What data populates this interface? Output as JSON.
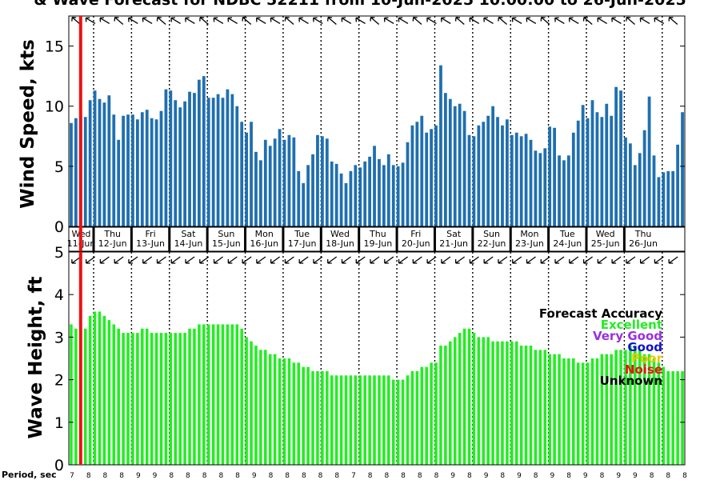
{
  "chart_data": {
    "title": "& Wave Forecast for NDBC 52211 from 10-Jun-2025 10:00:00 to 26-Jun-2025",
    "current_time_index": 2.5,
    "wind": {
      "type": "bar",
      "ylabel": "Wind Speed, kts",
      "ylim": [
        0,
        17.5
      ],
      "yticks": [
        0,
        5,
        10,
        15
      ],
      "bar_color": "#1f6fb0",
      "values": [
        8.6,
        9.0,
        9.2,
        9.1,
        10.5,
        11.3,
        10.6,
        10.3,
        10.9,
        9.3,
        7.2,
        9.2,
        9.3,
        9.3,
        8.9,
        9.5,
        9.7,
        9.0,
        8.9,
        9.6,
        11.4,
        11.3,
        10.5,
        9.9,
        10.4,
        11.2,
        11.1,
        12.2,
        12.5,
        10.7,
        10.7,
        11.0,
        10.7,
        11.4,
        11.0,
        10.0,
        8.7,
        7.8,
        8.7,
        6.2,
        5.5,
        7.2,
        6.7,
        7.3,
        8.1,
        7.2,
        7.6,
        7.4,
        4.6,
        3.6,
        5.1,
        6.0,
        7.6,
        7.5,
        7.3,
        5.4,
        5.2,
        4.4,
        3.6,
        4.6,
        5.1,
        4.9,
        5.4,
        5.8,
        6.7,
        5.6,
        5.1,
        6.0,
        5.1,
        5.0,
        5.3,
        7.0,
        8.4,
        8.7,
        9.2,
        7.8,
        8.1,
        8.4,
        13.4,
        11.1,
        10.6,
        10.0,
        10.2,
        9.6,
        7.6,
        7.5,
        8.4,
        8.7,
        9.2,
        10.0,
        9.1,
        8.4,
        8.9,
        7.6,
        7.8,
        7.5,
        7.7,
        7.2,
        6.3,
        6.1,
        6.5,
        8.3,
        8.2,
        5.9,
        5.5,
        5.9,
        7.8,
        8.8,
        10.1,
        9.0,
        10.5,
        9.5,
        9.1,
        10.2,
        9.2,
        11.6,
        11.3,
        7.4,
        6.9,
        5.1,
        6.1,
        8.0,
        10.8,
        5.9,
        4.1,
        4.5,
        4.6,
        4.6,
        6.8,
        9.5
      ],
      "day_labels": [
        {
          "day": "Wed",
          "date": "11-Jun"
        },
        {
          "day": "Thu",
          "date": "12-Jun"
        },
        {
          "day": "Fri",
          "date": "13-Jun"
        },
        {
          "day": "Sat",
          "date": "14-Jun"
        },
        {
          "day": "Sun",
          "date": "15-Jun"
        },
        {
          "day": "Mon",
          "date": "16-Jun"
        },
        {
          "day": "Tue",
          "date": "17-Jun"
        },
        {
          "day": "Wed",
          "date": "18-Jun"
        },
        {
          "day": "Thu",
          "date": "19-Jun"
        },
        {
          "day": "Fri",
          "date": "20-Jun"
        },
        {
          "day": "Sat",
          "date": "21-Jun"
        },
        {
          "day": "Sun",
          "date": "22-Jun"
        },
        {
          "day": "Mon",
          "date": "23-Jun"
        },
        {
          "day": "Tue",
          "date": "24-Jun"
        },
        {
          "day": "Wed",
          "date": "25-Jun"
        },
        {
          "day": "Thu",
          "date": "26-Jun"
        }
      ]
    },
    "wave": {
      "type": "bar",
      "ylabel": "Wave Height, ft",
      "ylim": [
        0,
        5
      ],
      "yticks": [
        0,
        1,
        2,
        3,
        4,
        5
      ],
      "bar_color": "#22ee22",
      "values": [
        3.3,
        3.2,
        3.2,
        3.2,
        3.5,
        3.6,
        3.6,
        3.5,
        3.4,
        3.3,
        3.2,
        3.1,
        3.1,
        3.1,
        3.1,
        3.2,
        3.2,
        3.1,
        3.1,
        3.1,
        3.1,
        3.1,
        3.1,
        3.1,
        3.1,
        3.2,
        3.2,
        3.3,
        3.3,
        3.3,
        3.3,
        3.3,
        3.3,
        3.3,
        3.3,
        3.3,
        3.2,
        3.0,
        2.9,
        2.8,
        2.7,
        2.7,
        2.6,
        2.6,
        2.5,
        2.5,
        2.5,
        2.4,
        2.4,
        2.3,
        2.3,
        2.2,
        2.2,
        2.2,
        2.2,
        2.1,
        2.1,
        2.1,
        2.1,
        2.1,
        2.1,
        2.1,
        2.1,
        2.1,
        2.1,
        2.1,
        2.1,
        2.1,
        2.0,
        2.0,
        2.0,
        2.1,
        2.2,
        2.2,
        2.3,
        2.3,
        2.4,
        2.4,
        2.8,
        2.8,
        2.9,
        3.0,
        3.1,
        3.2,
        3.2,
        3.1,
        3.0,
        3.0,
        3.0,
        2.9,
        2.9,
        2.9,
        2.9,
        2.9,
        2.9,
        2.8,
        2.8,
        2.8,
        2.7,
        2.7,
        2.7,
        2.6,
        2.6,
        2.6,
        2.5,
        2.5,
        2.5,
        2.4,
        2.4,
        2.4,
        2.5,
        2.5,
        2.6,
        2.6,
        2.6,
        2.7,
        2.7,
        2.7,
        2.8,
        2.8,
        2.7,
        2.6,
        2.6,
        2.5,
        2.4,
        2.3,
        2.2,
        2.2,
        2.2,
        2.2
      ]
    },
    "period_label": "Period, sec",
    "periods": [
      7,
      8,
      8,
      8,
      9,
      9,
      8,
      8,
      8,
      8,
      8,
      9,
      8,
      8,
      8,
      8,
      8,
      7,
      8,
      8,
      8,
      8,
      8,
      9,
      8,
      9,
      8,
      9,
      8,
      9,
      8,
      9,
      8,
      9,
      9,
      8,
      8,
      8
    ],
    "legend": {
      "title": "Forecast Accuracy",
      "items": [
        {
          "label": "Excellent",
          "color": "#22ee22"
        },
        {
          "label": "Very Good",
          "color": "#9b30e0"
        },
        {
          "label": "Good",
          "color": "#1010d0"
        },
        {
          "label": "Poor",
          "color": "#e8c800"
        },
        {
          "label": "Noise",
          "color": "#ee1111"
        },
        {
          "label": "Unknown",
          "color": "#000000"
        }
      ]
    }
  }
}
